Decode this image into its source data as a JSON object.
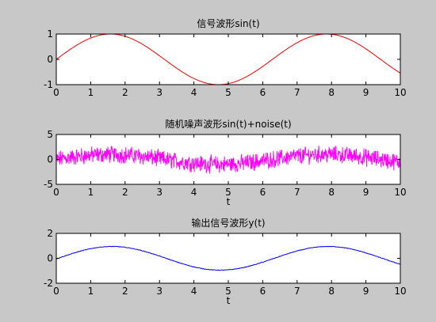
{
  "figure": {
    "background": "#c8c8c8",
    "axes_background": "#ffffff"
  },
  "chart_data": [
    {
      "type": "line",
      "title": "信号波形sin(t)",
      "xlabel": "",
      "ylabel": "",
      "xlim": [
        0,
        10
      ],
      "ylim": [
        -1,
        1
      ],
      "xticks": [
        "0",
        "1",
        "2",
        "3",
        "4",
        "5",
        "6",
        "7",
        "8",
        "9",
        "10"
      ],
      "yticks": [
        "-1",
        "0",
        "1"
      ],
      "grid": false,
      "series": [
        {
          "color": "#ff0000",
          "kind": "function",
          "function": "sin(t)",
          "amplitude": 1,
          "x": [
            0,
            0.5,
            1,
            1.5,
            2,
            2.5,
            3,
            3.5,
            4,
            4.5,
            5,
            5.5,
            6,
            6.5,
            7,
            7.5,
            8,
            8.5,
            9,
            9.5,
            10
          ],
          "y": [
            0,
            0.48,
            0.84,
            1.0,
            0.91,
            0.6,
            0.14,
            -0.35,
            -0.76,
            -0.98,
            -0.96,
            -0.71,
            -0.28,
            0.22,
            0.66,
            0.94,
            0.99,
            0.8,
            0.41,
            -0.08,
            -0.54
          ]
        }
      ]
    },
    {
      "type": "line",
      "title": "随机噪声波形sin(t)+noise(t)",
      "xlabel": "t",
      "ylabel": "",
      "xlim": [
        0,
        10
      ],
      "ylim": [
        -5,
        5
      ],
      "xticks": [
        "0",
        "1",
        "2",
        "3",
        "4",
        "5",
        "6",
        "7",
        "8",
        "9",
        "10"
      ],
      "yticks": [
        "-5",
        "0",
        "5"
      ],
      "grid": false,
      "series": [
        {
          "color": "#ff00ff",
          "kind": "noisy",
          "function": "sin(t)+noise(t)",
          "amplitude": 1,
          "noise_band": 1.4,
          "x": [
            0,
            0.5,
            1,
            1.5,
            2,
            2.5,
            3,
            3.5,
            4,
            4.5,
            5,
            5.5,
            6,
            6.5,
            7,
            7.5,
            8,
            8.5,
            9,
            9.5,
            10
          ],
          "y": [
            0,
            0.48,
            0.84,
            1.0,
            0.91,
            0.6,
            0.14,
            -0.35,
            -0.76,
            -0.98,
            -0.96,
            -0.71,
            -0.28,
            0.22,
            0.66,
            0.94,
            0.99,
            0.8,
            0.41,
            -0.08,
            -0.54
          ]
        }
      ]
    },
    {
      "type": "line",
      "title": "输出信号波形y(t)",
      "xlabel": "t",
      "ylabel": "",
      "xlim": [
        0,
        10
      ],
      "ylim": [
        -2,
        2
      ],
      "xticks": [
        "0",
        "1",
        "2",
        "3",
        "4",
        "5",
        "6",
        "7",
        "8",
        "9",
        "10"
      ],
      "yticks": [
        "-2",
        "0",
        "2"
      ],
      "grid": false,
      "series": [
        {
          "color": "#0000ff",
          "kind": "smoothed",
          "function": "y(t)",
          "amplitude": 0.95,
          "x": [
            0,
            0.5,
            1,
            1.5,
            2,
            2.5,
            3,
            3.5,
            4,
            4.5,
            5,
            5.5,
            6,
            6.5,
            7,
            7.5,
            8,
            8.5,
            9,
            9.5,
            10
          ],
          "y": [
            -0.05,
            0.45,
            0.8,
            0.95,
            0.87,
            0.57,
            0.13,
            -0.33,
            -0.72,
            -0.93,
            -0.91,
            -0.67,
            -0.27,
            0.21,
            0.63,
            0.89,
            0.94,
            0.76,
            0.39,
            -0.08,
            -0.52
          ]
        }
      ]
    }
  ]
}
